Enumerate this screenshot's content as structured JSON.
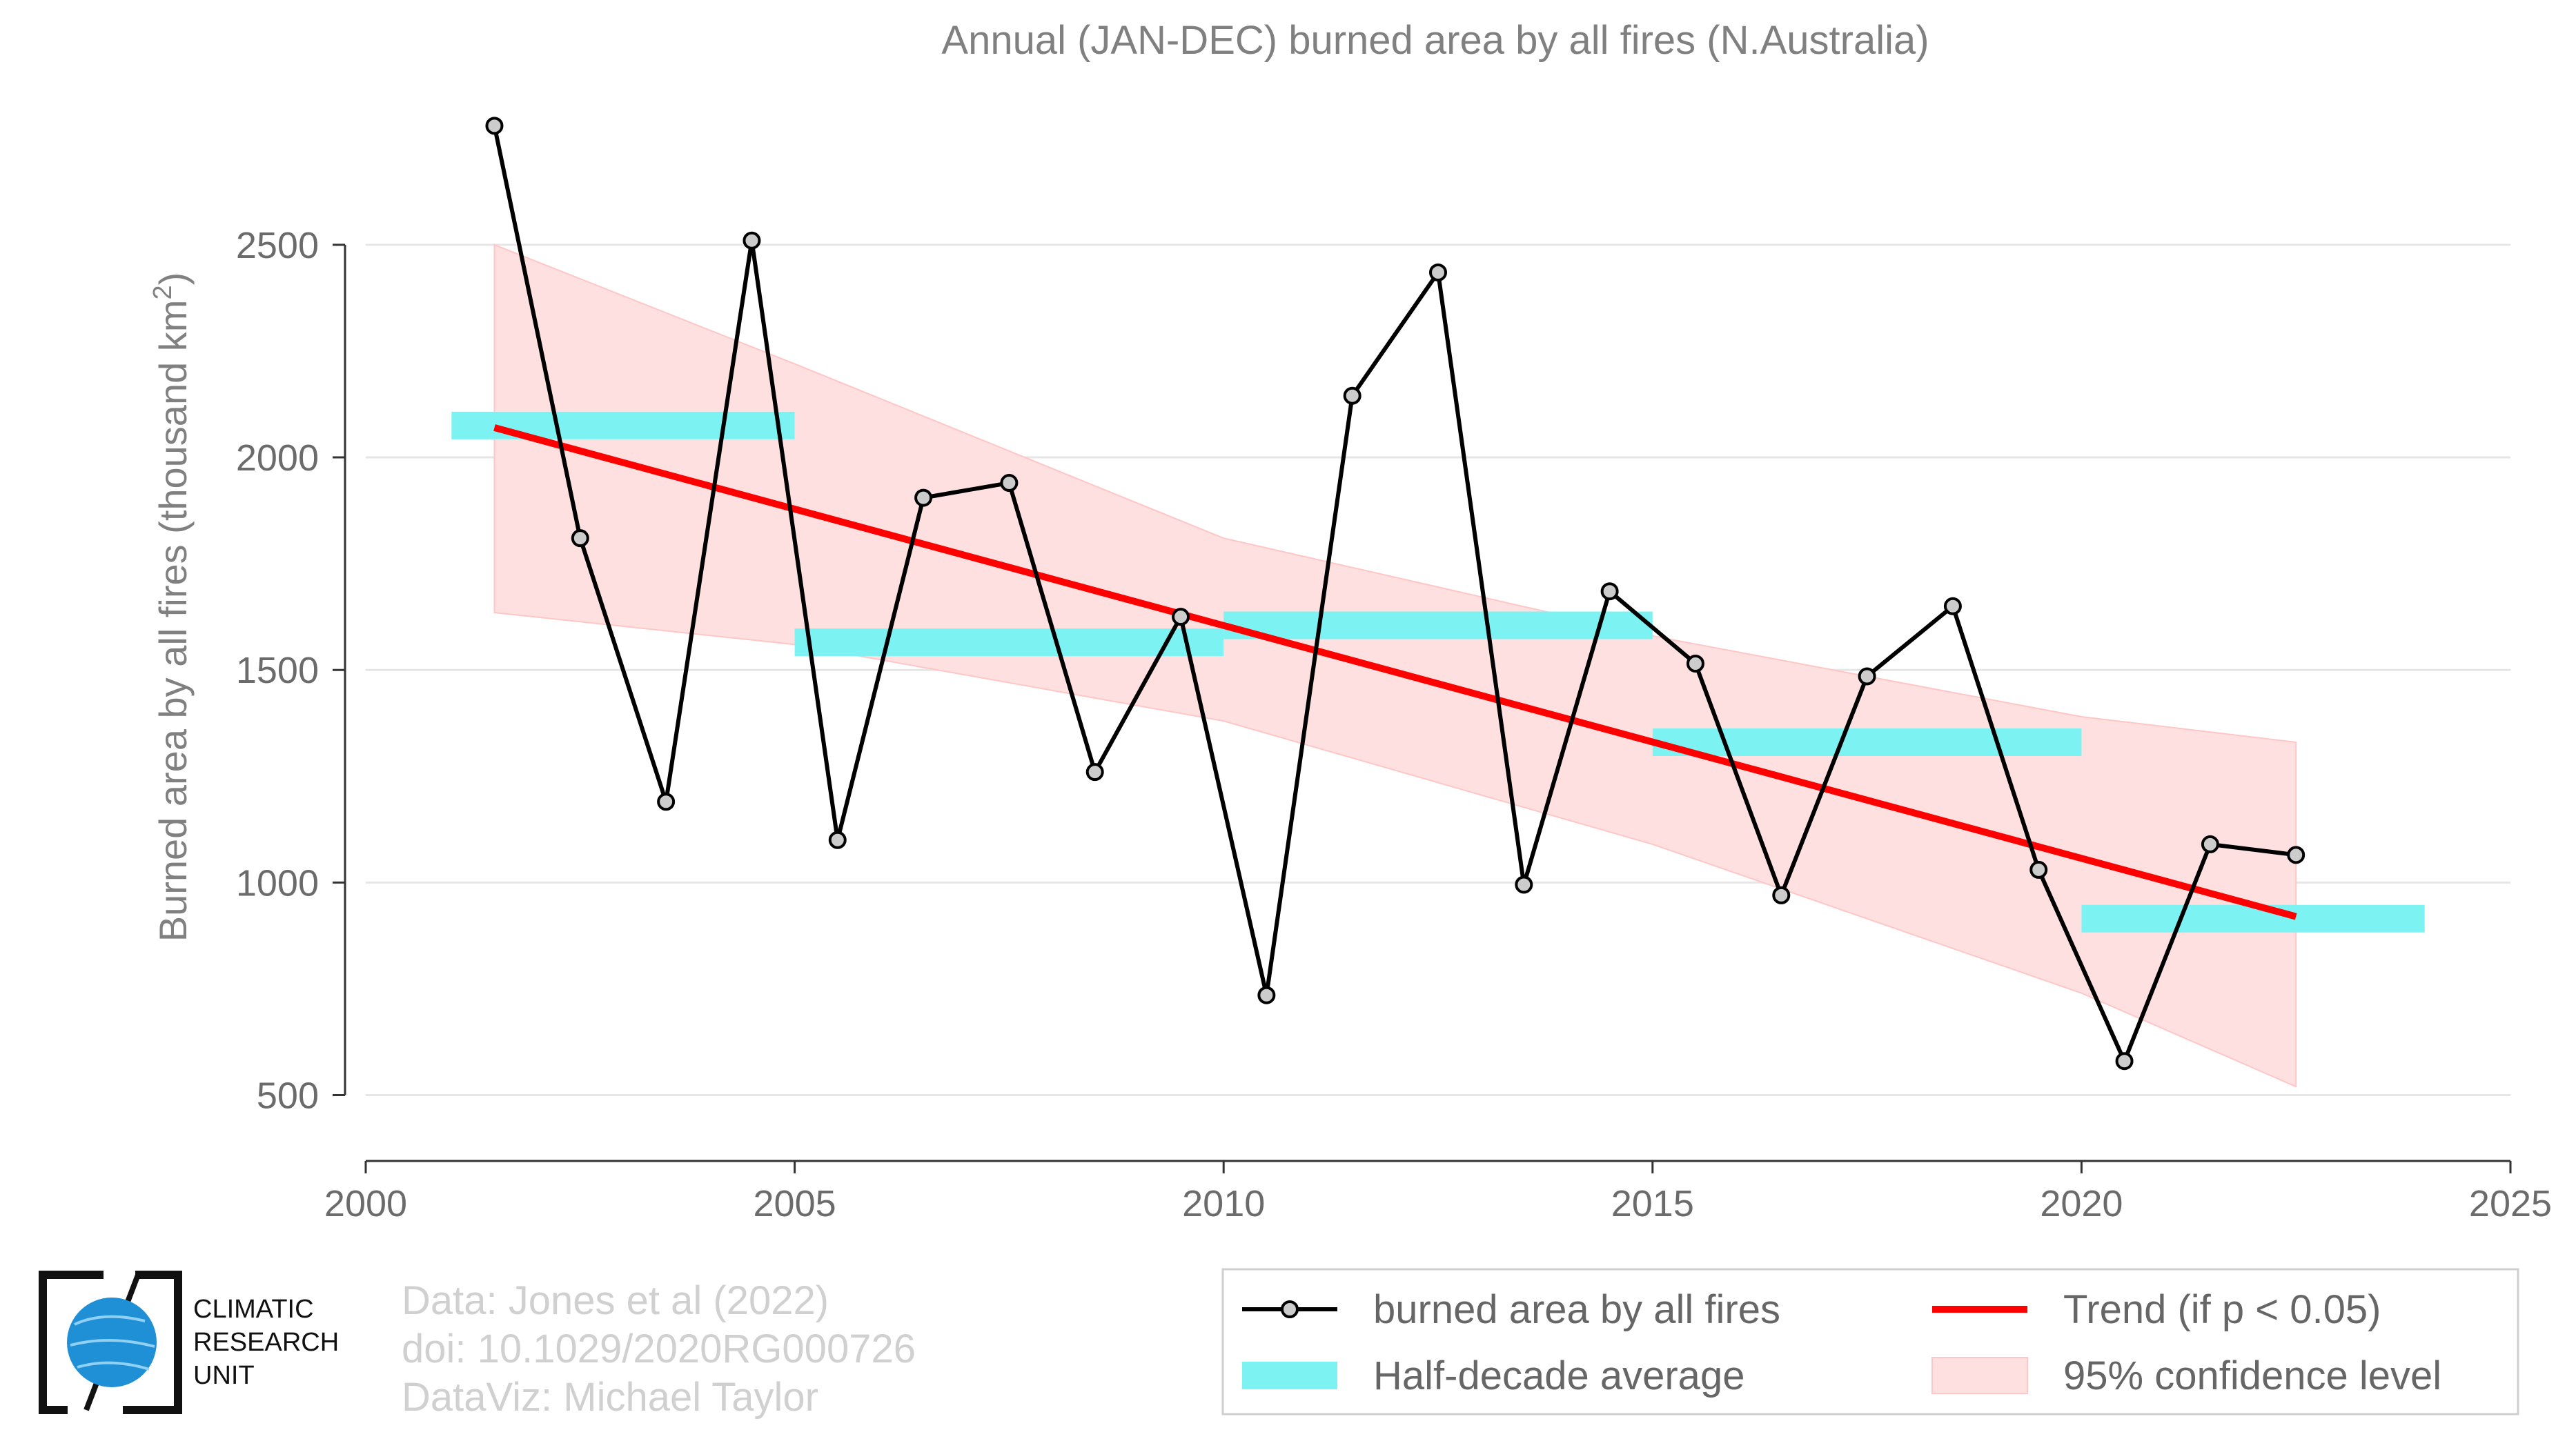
{
  "chart_data": {
    "type": "line",
    "title": "Annual (JAN-DEC) burned area by all fires (N.Australia)",
    "ylabel_main": "Burned area by all fires (thousand km",
    "ylabel_sup": "2",
    "ylabel_close": ")",
    "xlim": [
      2000,
      2025
    ],
    "ylim": [
      350,
      2800
    ],
    "x_ticks": [
      2000,
      2005,
      2010,
      2015,
      2020,
      2025
    ],
    "y_ticks": [
      500,
      1000,
      1500,
      2000,
      2500
    ],
    "grid": true,
    "series": [
      {
        "name": "burned area by all fires",
        "color": "#000000",
        "x": [
          2001.5,
          2002.5,
          2003.5,
          2004.5,
          2005.5,
          2006.5,
          2007.5,
          2008.5,
          2009.5,
          2010.5,
          2011.5,
          2012.5,
          2013.5,
          2014.5,
          2015.5,
          2016.5,
          2017.5,
          2018.5,
          2019.5,
          2020.5,
          2021.5,
          2022.5
        ],
        "values": [
          2780,
          1810,
          1190,
          2510,
          1100,
          1905,
          1940,
          1260,
          1625,
          735,
          2145,
          2435,
          995,
          1685,
          1515,
          970,
          1485,
          1650,
          1030,
          580,
          1090,
          1065
        ]
      }
    ],
    "half_decade_average": {
      "name": "Half-decade average",
      "color": "#7df2f2",
      "segments": [
        {
          "x0": 2001,
          "x1": 2005,
          "value": 2075
        },
        {
          "x0": 2005,
          "x1": 2010,
          "value": 1565
        },
        {
          "x0": 2010,
          "x1": 2015,
          "value": 1605
        },
        {
          "x0": 2015,
          "x1": 2020,
          "value": 1330
        },
        {
          "x0": 2020,
          "x1": 2024,
          "value": 915
        }
      ]
    },
    "trend": {
      "name": "Trend (if p < 0.05)",
      "color": "#ff0000",
      "x": [
        2001.5,
        2022.5
      ],
      "values": [
        2070,
        920
      ]
    },
    "confidence_band": {
      "name": "95% confidence level",
      "color": "#ffb3b3",
      "x": [
        2001.5,
        2005,
        2010,
        2015,
        2020,
        2022.5
      ],
      "upper": [
        2500,
        2220,
        1810,
        1580,
        1390,
        1330
      ],
      "lower": [
        1635,
        1560,
        1380,
        1090,
        740,
        520
      ]
    },
    "legend_position": "bottom-right"
  },
  "credits": {
    "line1": "Data: Jones et al (2022)",
    "line2": "doi: 10.1029/2020RG000726",
    "line3": "DataViz: Michael Taylor"
  },
  "logo": {
    "line1": "CLIMATIC",
    "line2": "RESEARCH",
    "line3": "UNIT",
    "globe_color": "#1f8fd6"
  }
}
